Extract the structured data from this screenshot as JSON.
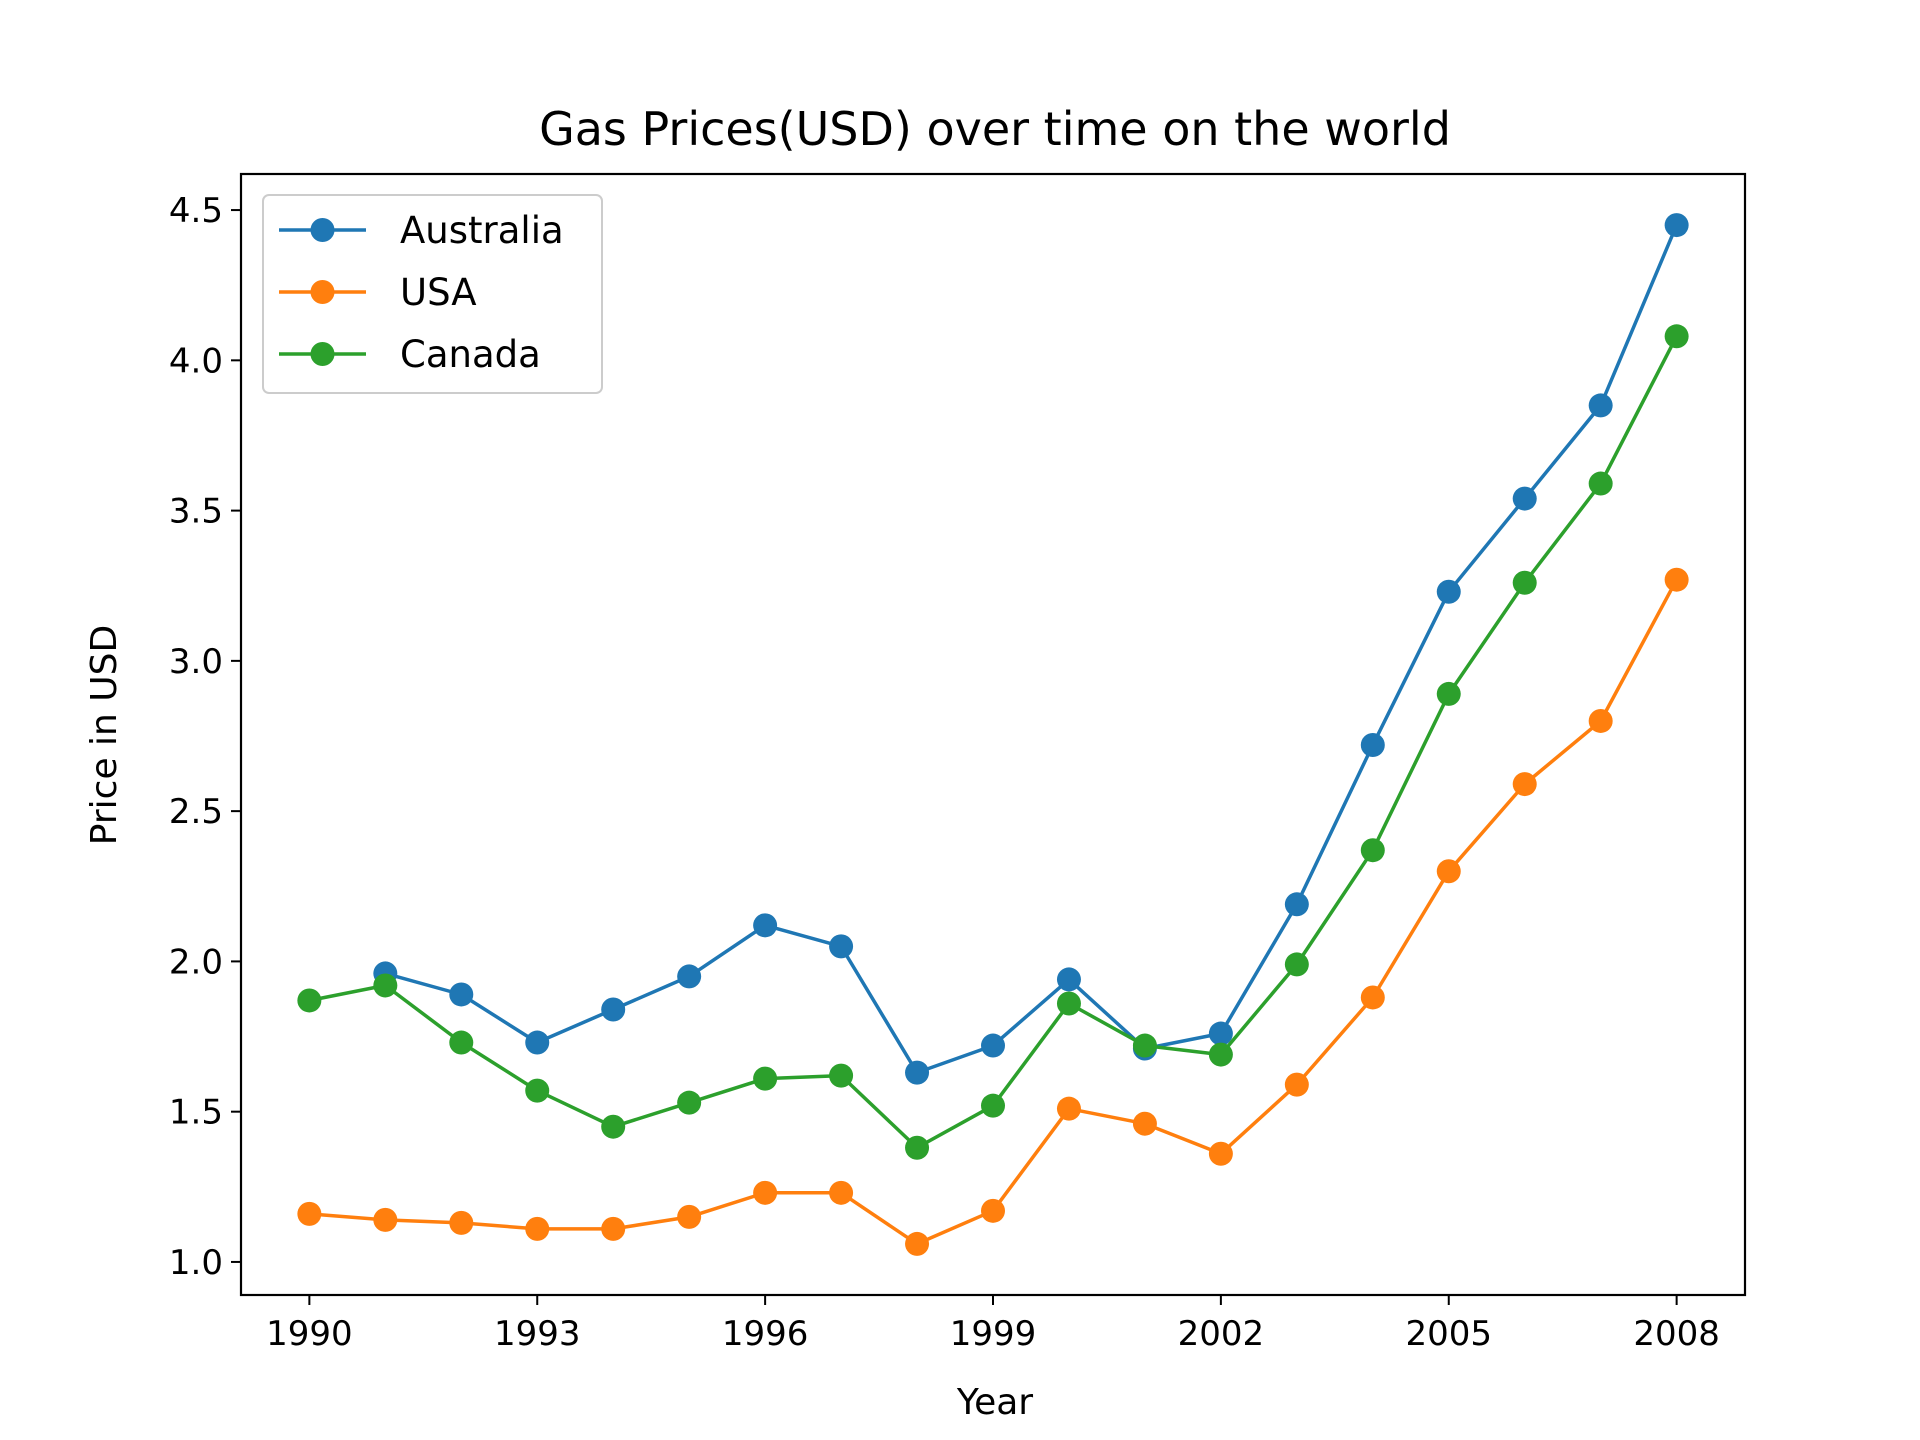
{
  "chart_data": {
    "type": "line",
    "title": "Gas Prices(USD) over time on the world",
    "xlabel": "Year",
    "ylabel": "Price in USD",
    "x": [
      1990,
      1991,
      1992,
      1993,
      1994,
      1995,
      1996,
      1997,
      1998,
      1999,
      2000,
      2001,
      2002,
      2003,
      2004,
      2005,
      2006,
      2007,
      2008
    ],
    "xticks": [
      1990,
      1993,
      1996,
      1999,
      2002,
      2005,
      2008
    ],
    "yticks": [
      1.0,
      1.5,
      2.0,
      2.5,
      3.0,
      3.5,
      4.0,
      4.5
    ],
    "xlim": [
      1989.1,
      2008.9
    ],
    "ylim": [
      0.89,
      4.62
    ],
    "grid": false,
    "legend_position": "upper-left",
    "series": [
      {
        "name": "Australia",
        "color": "#1f77b4",
        "x": [
          1991,
          1992,
          1993,
          1994,
          1995,
          1996,
          1997,
          1998,
          1999,
          2000,
          2001,
          2002,
          2003,
          2004,
          2005,
          2006,
          2007,
          2008
        ],
        "values": [
          1.96,
          1.89,
          1.73,
          1.84,
          1.95,
          2.12,
          2.05,
          1.63,
          1.72,
          1.94,
          1.71,
          1.76,
          2.19,
          2.72,
          3.23,
          3.54,
          3.85,
          4.45
        ]
      },
      {
        "name": "USA",
        "color": "#ff7f0e",
        "x": [
          1990,
          1991,
          1992,
          1993,
          1994,
          1995,
          1996,
          1997,
          1998,
          1999,
          2000,
          2001,
          2002,
          2003,
          2004,
          2005,
          2006,
          2007,
          2008
        ],
        "values": [
          1.16,
          1.14,
          1.13,
          1.11,
          1.11,
          1.15,
          1.23,
          1.23,
          1.06,
          1.17,
          1.51,
          1.46,
          1.36,
          1.59,
          1.88,
          2.3,
          2.59,
          2.8,
          3.27
        ]
      },
      {
        "name": "Canada",
        "color": "#2ca02c",
        "x": [
          1990,
          1991,
          1992,
          1993,
          1994,
          1995,
          1996,
          1997,
          1998,
          1999,
          2000,
          2001,
          2002,
          2003,
          2004,
          2005,
          2006,
          2007,
          2008
        ],
        "values": [
          1.87,
          1.92,
          1.73,
          1.57,
          1.45,
          1.53,
          1.61,
          1.62,
          1.38,
          1.52,
          1.86,
          1.72,
          1.69,
          1.99,
          2.37,
          2.89,
          3.26,
          3.59,
          4.08
        ]
      }
    ]
  }
}
